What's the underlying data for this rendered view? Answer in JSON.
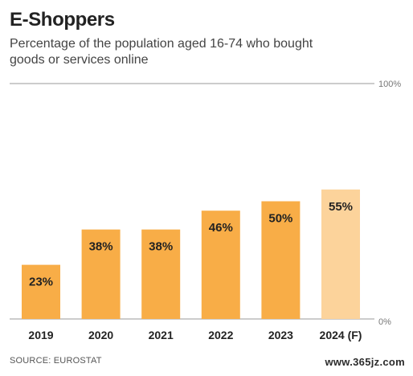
{
  "title": "E-Shoppers",
  "subtitle": "Percentage of the population aged 16-74 who bought goods or services online",
  "source": "SOURCE: EUROSTAT",
  "watermark": "www.365jz.com",
  "chart_data": {
    "type": "bar",
    "categories": [
      "2019",
      "2020",
      "2021",
      "2022",
      "2023",
      "2024 (F)"
    ],
    "values": [
      23,
      38,
      38,
      46,
      50,
      55
    ],
    "value_labels": [
      "23%",
      "38%",
      "38%",
      "46%",
      "50%",
      "55%"
    ],
    "ylim": [
      0,
      100
    ],
    "y_tick_labels": {
      "top": "100%",
      "bottom": "0%"
    },
    "grid": false,
    "colors": {
      "bar": "#F8AD47",
      "forecast_bar": "#FCD39B",
      "axis": "#999999",
      "label": "#222222"
    },
    "forecast_index": 5
  }
}
